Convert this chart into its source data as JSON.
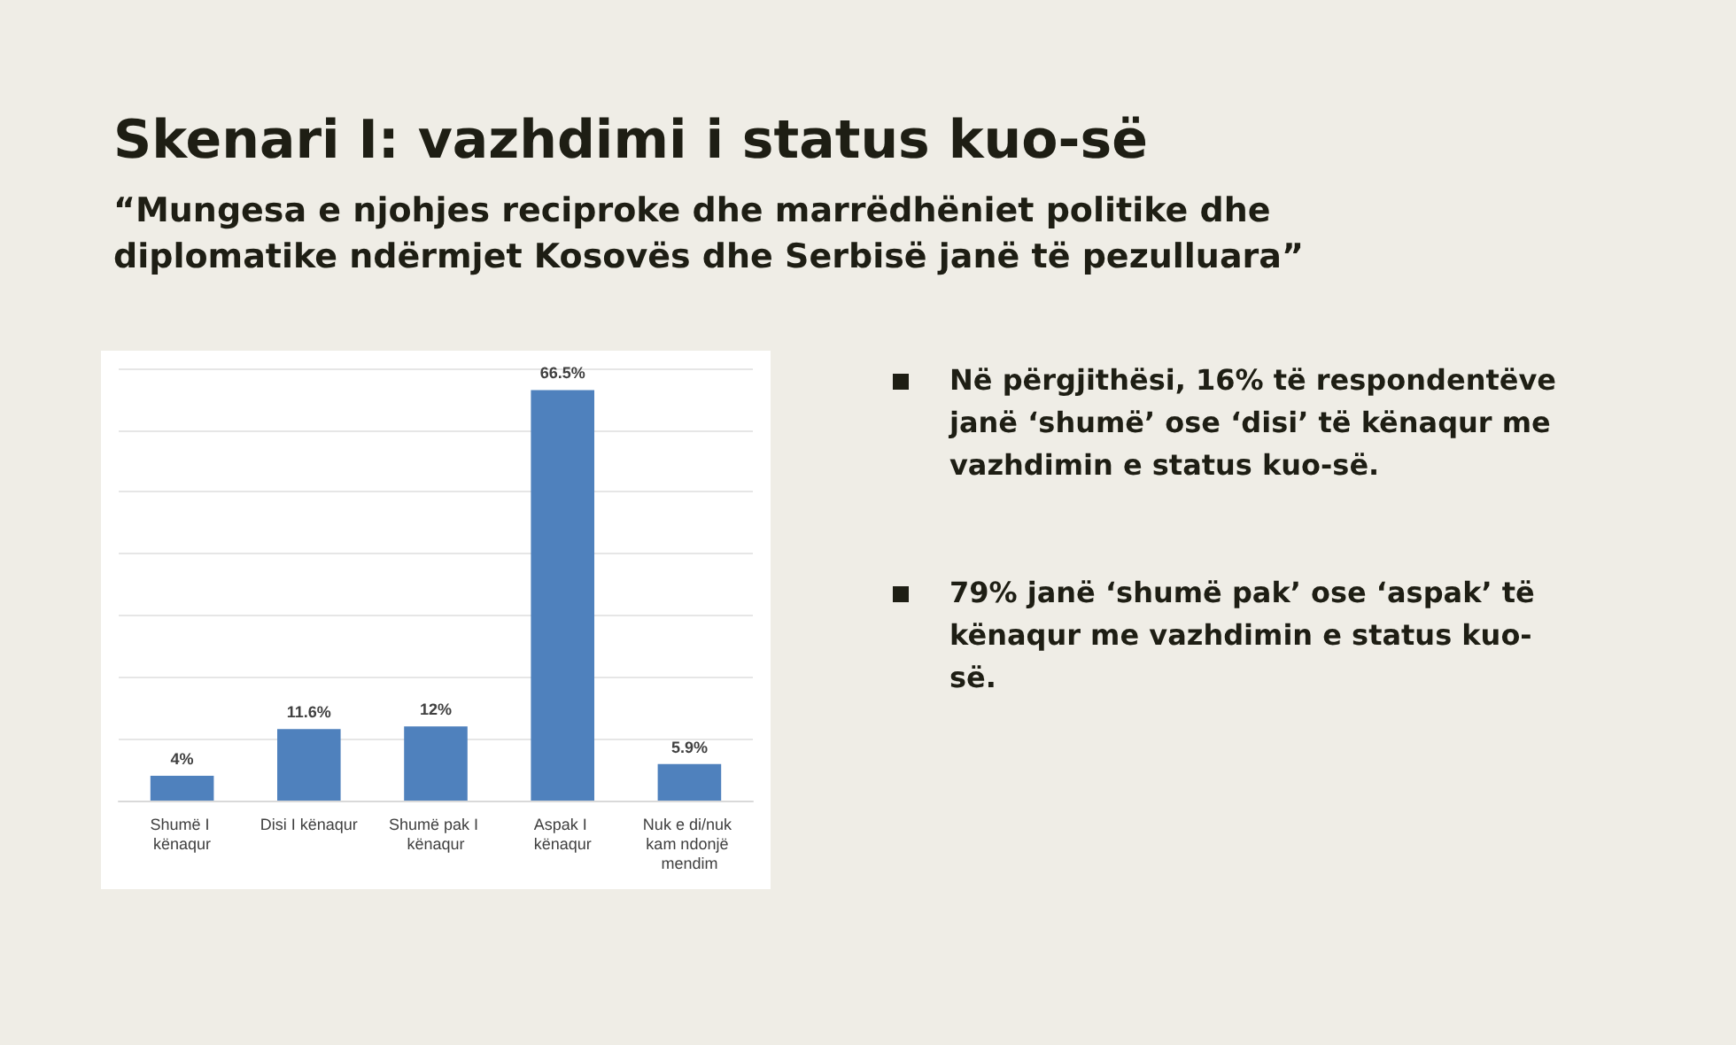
{
  "chart_data": {
    "type": "bar",
    "title": "Skenari I: vazhdimi i status kuo-së",
    "subtitle": "“Mungesa e njohjes reciproke dhe marrëdhëniet politike dhe diplomatike ndërmjet Kosovës dhe Serbisë janë të pezulluara”",
    "categories": [
      "Shumë I kënaqur",
      "Disi I kënaqur",
      "Shumë pak I kënaqur",
      "Aspak I kënaqur",
      "Nuk e di/nuk kam ndonjë mendim"
    ],
    "values": [
      4,
      11.6,
      12,
      66.5,
      5.9
    ],
    "value_labels": [
      "4%",
      "11.6%",
      "12%",
      "66.5%",
      "5.9%"
    ],
    "color": "#4f81bd",
    "ylim": [
      0,
      70
    ],
    "yticks": [
      0,
      10,
      20,
      30,
      40,
      50,
      60,
      70
    ],
    "grid": "y",
    "tick_labels": "x",
    "annotations": [
      "Në përgjithësi, 16% të respondentëve janë ‘shumë’ ose ‘disi’ të kënaqur me vazhdimin e status kuo-së.",
      "79% janë ‘shumë pak’ ose ‘aspak’ të kënaqur me vazhdimin e status kuo-së."
    ]
  }
}
